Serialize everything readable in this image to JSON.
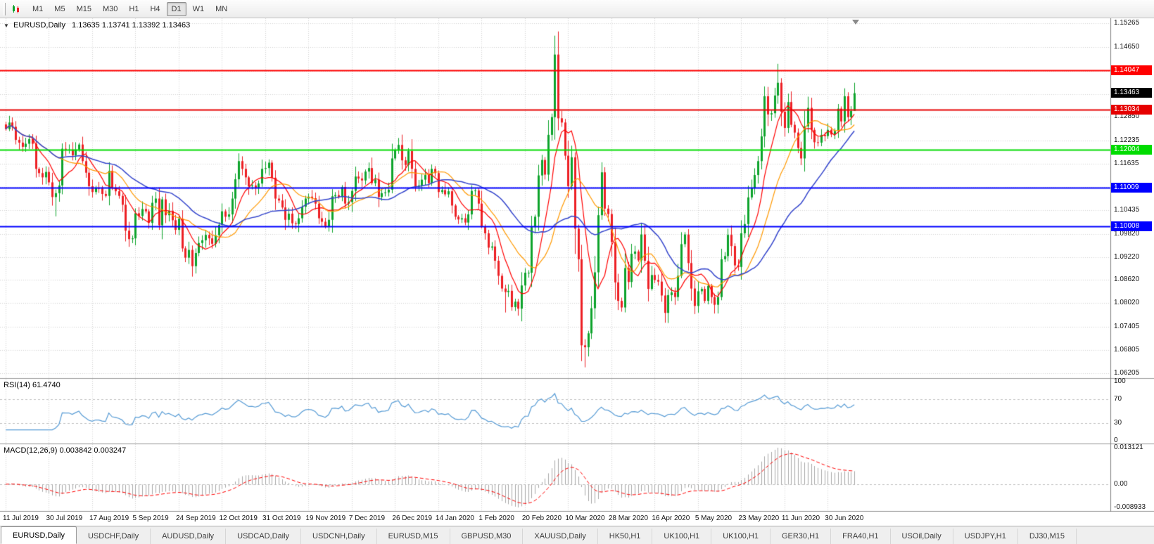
{
  "toolbar": {
    "timeframes": [
      {
        "label": "M1"
      },
      {
        "label": "M5"
      },
      {
        "label": "M15"
      },
      {
        "label": "M30"
      },
      {
        "label": "H1"
      },
      {
        "label": "H4"
      },
      {
        "label": "D1",
        "active": true
      },
      {
        "label": "W1"
      },
      {
        "label": "MN"
      }
    ]
  },
  "chart": {
    "dropdown_glyph": "▼",
    "symbol_period": "EURUSD,Daily",
    "ohlc_text": "1.13635 1.13741 1.13392 1.13463"
  },
  "price_axis": {
    "min": 1.0608,
    "max": 1.154,
    "grid_levels": [
      1.15265,
      1.1465,
      1.14035,
      1.13435,
      1.1285,
      1.12235,
      1.11635,
      1.11035,
      1.10435,
      1.0982,
      1.0922,
      1.0862,
      1.0802,
      1.07405,
      1.06805,
      1.06205
    ],
    "labels": [
      {
        "text": "1.15265",
        "value": 1.15265
      },
      {
        "text": "1.14650",
        "value": 1.1465
      },
      {
        "text": "1.12850",
        "value": 1.1285
      },
      {
        "text": "1.12235",
        "value": 1.12235
      },
      {
        "text": "1.11635",
        "value": 1.11635
      },
      {
        "text": "1.10435",
        "value": 1.10435
      },
      {
        "text": "1.09820",
        "value": 1.0982
      },
      {
        "text": "1.09220",
        "value": 1.0922
      },
      {
        "text": "1.08620",
        "value": 1.0862
      },
      {
        "text": "1.08020",
        "value": 1.0802
      },
      {
        "text": "1.07405",
        "value": 1.07405
      },
      {
        "text": "1.06805",
        "value": 1.06805
      },
      {
        "text": "1.06205",
        "value": 1.06205
      }
    ],
    "current": {
      "text": "1.13463",
      "value": 1.13463,
      "bg": "#000000"
    }
  },
  "hlines": [
    {
      "price": 1.14047,
      "badge": "1.14047",
      "color": "#FF0000",
      "width": 2
    },
    {
      "price": 1.13034,
      "badge": "1.13034",
      "color": "#E60000",
      "width": 2
    },
    {
      "price": 1.12004,
      "badge": "1.12004",
      "color": "#00DC00",
      "width": 2
    },
    {
      "price": 1.11009,
      "badge": "1.11009",
      "color": "#0000FF",
      "width": 2
    },
    {
      "price": 1.10008,
      "badge": "1.10008",
      "color": "#0000FF",
      "width": 2
    }
  ],
  "rsi": {
    "label": "RSI(14) 61.4740",
    "period": 14,
    "color": "#569BD5",
    "levels": [
      70,
      30
    ],
    "axis_labels": [
      "100",
      "70",
      "30",
      "0"
    ]
  },
  "macd": {
    "label": "MACD(12,26,9) 0.003842 0.003247",
    "fast": 12,
    "slow": 26,
    "signal": 9,
    "hist_color": "#A8A8A8",
    "signal_color": "#FF0000",
    "axis_labels": [
      "0.013121",
      "0.00",
      "-0.008933"
    ]
  },
  "colors": {
    "up": "#0DA32B",
    "down": "#ED1F24",
    "grid": "#D4D4D4",
    "separator": "#9A9A9A",
    "axis_line": "#808080"
  },
  "chart_data": {
    "type": "candlestick",
    "symbol": "EURUSD",
    "timeframe": "Daily",
    "current_bar": {
      "open": 1.13635,
      "high": 1.13741,
      "low": 1.13392,
      "close": 1.13463
    },
    "bars_per_label": 13,
    "x_labels": [
      "11 Jul 2019",
      "30 Jul 2019",
      "17 Aug 2019",
      "5 Sep 2019",
      "24 Sep 2019",
      "12 Oct 2019",
      "31 Oct 2019",
      "19 Nov 2019",
      "7 Dec 2019",
      "26 Dec 2019",
      "14 Jan 2020",
      "1 Feb 2020",
      "20 Feb 2020",
      "10 Mar 2020",
      "28 Mar 2020",
      "16 Apr 2020",
      "5 May 2020",
      "23 May 2020",
      "11 Jun 2020",
      "30 Jun 2020"
    ],
    "ma": [
      {
        "period": 8,
        "color": "#FF0000",
        "width": 1.2
      },
      {
        "period": 17,
        "color": "#FF9900",
        "width": 1.2
      },
      {
        "period": 34,
        "color": "#3344CC",
        "width": 1.5
      }
    ],
    "closes": [
      1.1253,
      1.127,
      1.1259,
      1.1225,
      1.1218,
      1.1207,
      1.1215,
      1.1227,
      1.1215,
      1.115,
      1.1139,
      1.1128,
      1.1142,
      1.1115,
      1.1077,
      1.1087,
      1.1107,
      1.1202,
      1.12,
      1.12,
      1.1185,
      1.12,
      1.1213,
      1.117,
      1.114,
      1.1105,
      1.109,
      1.11,
      1.1099,
      1.1085,
      1.108,
      1.1145,
      1.11,
      1.1092,
      1.108,
      1.1057,
      1.099,
      1.0968,
      1.097,
      1.1035,
      1.1028,
      1.1046,
      1.104,
      1.101,
      1.1062,
      1.1073,
      1.1004,
      1.1071,
      1.103,
      1.1041,
      1.1017,
      1.0992,
      1.1021,
      1.0944,
      1.092,
      1.094,
      1.0898,
      1.0932,
      1.0958,
      1.0965,
      1.0979,
      1.097,
      1.0956,
      1.0978,
      1.1005,
      1.104,
      1.1026,
      1.1032,
      1.1073,
      1.1123,
      1.117,
      1.115,
      1.1128,
      1.1105,
      1.1107,
      1.11,
      1.1112,
      1.115,
      1.1152,
      1.1166,
      1.1127,
      1.1073,
      1.1068,
      1.105,
      1.1018,
      1.1034,
      1.1009,
      1.1007,
      1.1022,
      1.1052,
      1.1073,
      1.1078,
      1.1074,
      1.106,
      1.1022,
      1.1013,
      1.1,
      1.1018,
      1.1079,
      1.1082,
      1.1077,
      1.1103,
      1.106,
      1.1064,
      1.1093,
      1.113,
      1.1125,
      1.112,
      1.1143,
      1.1152,
      1.1113,
      1.1122,
      1.1077,
      1.1087,
      1.1089,
      1.1096,
      1.1177,
      1.1199,
      1.1212,
      1.1172,
      1.116,
      1.1196,
      1.115,
      1.1104,
      1.1107,
      1.1122,
      1.1134,
      1.1113,
      1.115,
      1.1139,
      1.109,
      1.1095,
      1.1084,
      1.1092,
      1.1055,
      1.1026,
      1.1019,
      1.1022,
      1.1011,
      1.1032,
      1.1093,
      1.1094,
      1.106,
      1.1001,
      1.0983,
      1.0946,
      1.0949,
      1.0912,
      1.0873,
      1.084,
      1.0831,
      1.0834,
      1.0792,
      1.0806,
      1.0788,
      1.0848,
      1.0881,
      1.0881,
      1.0999,
      1.1026,
      1.1133,
      1.1173,
      1.1135,
      1.1238,
      1.1284,
      1.1446,
      1.1281,
      1.127,
      1.1184,
      1.1105,
      1.118,
      1.0995,
      1.0916,
      1.0693,
      1.0688,
      1.0724,
      1.0789,
      1.0882,
      1.103,
      1.1141,
      1.1047,
      1.1033,
      1.0961,
      1.0856,
      1.0808,
      1.0791,
      1.0893,
      1.0857,
      1.093,
      1.0936,
      1.0913,
      1.098,
      1.0912,
      1.0839,
      1.0875,
      1.0862,
      1.0858,
      1.0822,
      1.0777,
      1.0823,
      1.083,
      1.0818,
      1.0873,
      1.0955,
      1.098,
      1.0906,
      1.084,
      1.0795,
      1.0833,
      1.0839,
      1.0808,
      1.0847,
      1.0818,
      1.0798,
      1.0818,
      1.0916,
      1.0924,
      1.0979,
      1.095,
      1.09,
      1.0896,
      1.0983,
      1.1007,
      1.1076,
      1.1101,
      1.1134,
      1.117,
      1.1234,
      1.1338,
      1.1291,
      1.1294,
      1.134,
      1.1373,
      1.1298,
      1.1256,
      1.1323,
      1.1264,
      1.1244,
      1.1204,
      1.1177,
      1.126,
      1.1308,
      1.1251,
      1.1219,
      1.1218,
      1.1238,
      1.1235,
      1.1251,
      1.1239,
      1.1248,
      1.1306,
      1.1273,
      1.1338,
      1.1284,
      1.13,
      1.1346
    ],
    "wick_overrides": {
      "15": {
        "low": 1.1027
      },
      "57": {
        "low": 1.0879
      },
      "150": {
        "low": 1.0778
      },
      "165": {
        "high": 1.1495
      },
      "173": {
        "low": 1.0652
      },
      "174": {
        "low": 1.0636
      },
      "232": {
        "high": 1.1422
      },
      "255": {
        "high": 1.1373,
        "low": 1.1325
      }
    }
  },
  "tabs": [
    {
      "label": "EURUSD,Daily",
      "active": true
    },
    {
      "label": "USDCHF,Daily"
    },
    {
      "label": "AUDUSD,Daily"
    },
    {
      "label": "USDCAD,Daily"
    },
    {
      "label": "USDCNH,Daily"
    },
    {
      "label": "EURUSD,M15"
    },
    {
      "label": "GBPUSD,M30"
    },
    {
      "label": "XAUUSD,Daily"
    },
    {
      "label": "HK50,H1"
    },
    {
      "label": "UK100,H1"
    },
    {
      "label": "UK100,H1"
    },
    {
      "label": "GER30,H1"
    },
    {
      "label": "FRA40,H1"
    },
    {
      "label": "USOil,Daily"
    },
    {
      "label": "USDJPY,H1"
    },
    {
      "label": "DJ30,M15"
    }
  ]
}
